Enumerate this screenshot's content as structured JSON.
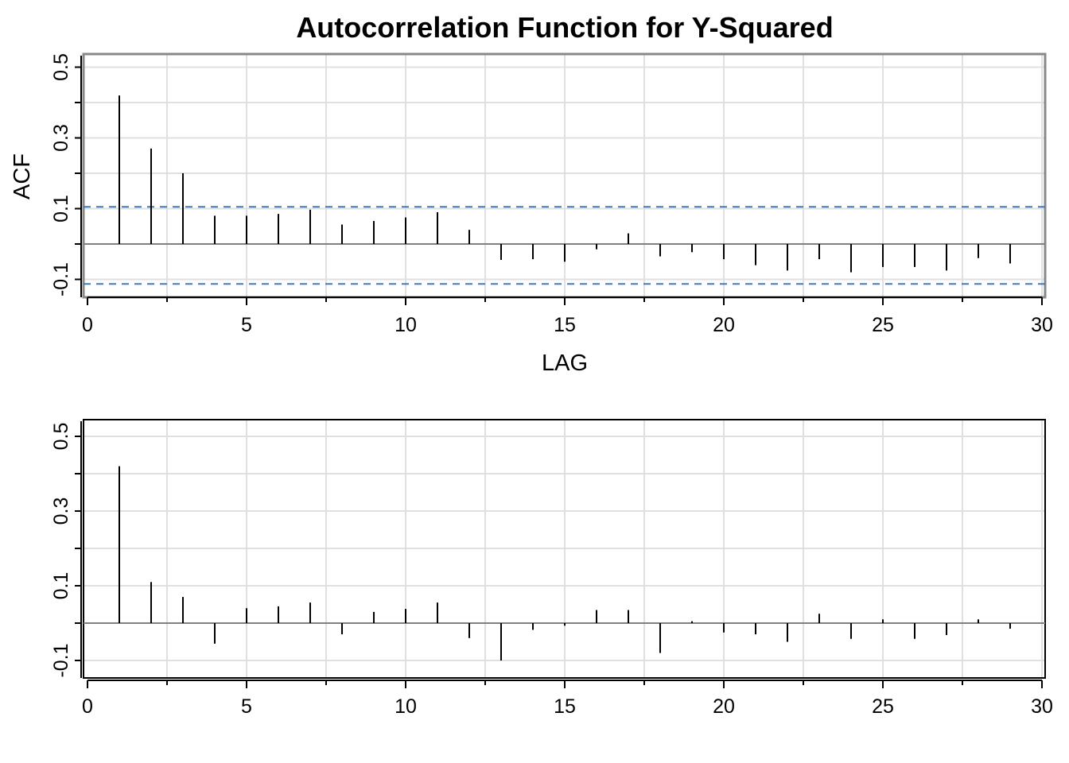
{
  "title": "Autocorrelation Function for Y-Squared",
  "colors": {
    "grid": "#e0e0e0",
    "stem": "#000000",
    "zero_line": "#808080",
    "conf_band": "#3a78c9"
  },
  "chart_data": [
    {
      "type": "bar",
      "subtype": "stem",
      "title": "Autocorrelation Function for Y-Squared",
      "xlabel": "LAG",
      "ylabel": "ACF",
      "xlim": [
        0,
        30
      ],
      "ylim": [
        -0.15,
        0.55
      ],
      "x_ticks": [
        0,
        5,
        10,
        15,
        20,
        25,
        30
      ],
      "x_tick_labels": [
        "0",
        "5",
        "10",
        "15",
        "20",
        "25",
        "30"
      ],
      "y_ticks": [
        -0.1,
        0.1,
        0.3,
        0.5
      ],
      "y_tick_labels": [
        "-0.1",
        "0.1",
        "0.3",
        "0.5"
      ],
      "grid": true,
      "confidence_bounds": [
        0.105,
        -0.113
      ],
      "x": [
        1,
        2,
        3,
        4,
        5,
        6,
        7,
        8,
        9,
        10,
        11,
        12,
        13,
        14,
        15,
        16,
        17,
        18,
        19,
        20,
        21,
        22,
        23,
        24,
        25,
        26,
        27,
        28,
        29
      ],
      "values": [
        0.42,
        0.27,
        0.2,
        0.08,
        0.08,
        0.085,
        0.097,
        0.055,
        0.065,
        0.075,
        0.09,
        0.04,
        -0.045,
        -0.043,
        -0.05,
        -0.015,
        0.03,
        -0.035,
        -0.023,
        -0.043,
        -0.06,
        -0.075,
        -0.043,
        -0.08,
        -0.065,
        -0.065,
        -0.075,
        -0.04,
        -0.055
      ]
    },
    {
      "type": "bar",
      "subtype": "stem",
      "title": "",
      "xlabel": "",
      "ylabel": "",
      "xlim": [
        0,
        30
      ],
      "ylim": [
        -0.15,
        0.55
      ],
      "x_ticks": [
        0,
        5,
        10,
        15,
        20,
        25,
        30
      ],
      "x_tick_labels": [
        "0",
        "5",
        "10",
        "15",
        "20",
        "25",
        "30"
      ],
      "y_ticks": [
        -0.1,
        0.1,
        0.3,
        0.5
      ],
      "y_tick_labels": [
        "-0.1",
        "0.1",
        "0.3",
        "0.5"
      ],
      "grid": true,
      "x": [
        1,
        2,
        3,
        4,
        5,
        6,
        7,
        8,
        9,
        10,
        11,
        12,
        13,
        14,
        15,
        16,
        17,
        18,
        19,
        20,
        21,
        22,
        23,
        24,
        25,
        26,
        27,
        28,
        29
      ],
      "values": [
        0.42,
        0.11,
        0.07,
        -0.055,
        0.04,
        0.045,
        0.055,
        -0.03,
        0.03,
        0.038,
        0.055,
        -0.04,
        -0.1,
        -0.018,
        -0.007,
        0.035,
        0.035,
        -0.08,
        0.005,
        -0.025,
        -0.03,
        -0.05,
        0.025,
        -0.042,
        0.01,
        -0.042,
        -0.032,
        0.01,
        -0.015
      ]
    }
  ]
}
